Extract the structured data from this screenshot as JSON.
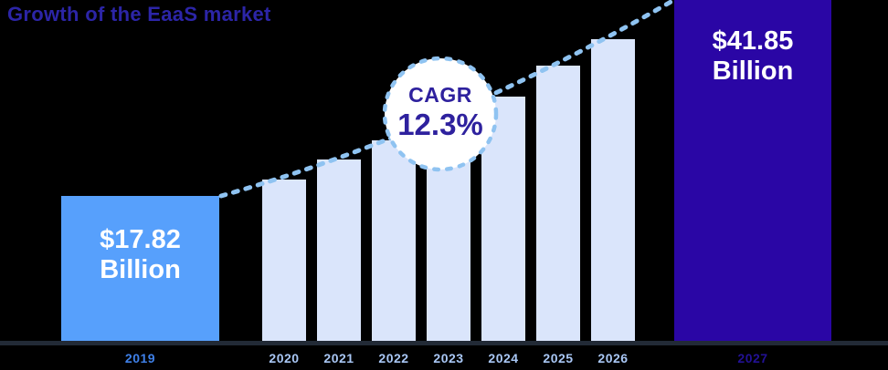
{
  "chart_data": {
    "type": "bar",
    "title": "Growth of the EaaS market",
    "categories": [
      "2019",
      "2020",
      "2021",
      "2022",
      "2023",
      "2024",
      "2025",
      "2026",
      "2027"
    ],
    "values": [
      17.82,
      19.8,
      22.2,
      24.6,
      27.0,
      29.9,
      33.7,
      37.0,
      41.85
    ],
    "xlabel": "",
    "ylabel": "",
    "ylim": [
      0,
      42
    ],
    "grid": false,
    "legend": "none",
    "annotations": {
      "start_value": {
        "amount": "$17.82",
        "unit": "Billion"
      },
      "end_value": {
        "amount": "$41.85",
        "unit": "Billion"
      },
      "cagr": {
        "label": "CAGR",
        "value": "12.3%"
      }
    },
    "colors": {
      "start_bar": "#57a0fc",
      "mid_bar": "#dae5fb",
      "end_bar": "#2a06a5",
      "trend_line": "#8fc3f1",
      "badge_border": "#8fc3f1",
      "badge_fill": "#ffffff",
      "axis_line": "#222a36",
      "title_text": "#2c25a7",
      "cagr_text": "#2e219e",
      "value_text": "#ffffff",
      "start_year_label": "#3f80e8",
      "mid_year_label": "#a9c7f5",
      "end_year_label": "#221195",
      "background": "#000000"
    }
  }
}
